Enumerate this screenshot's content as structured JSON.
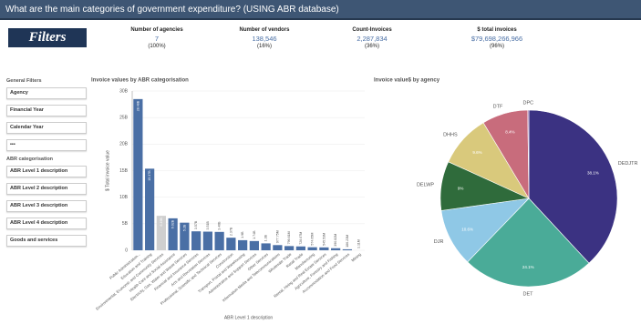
{
  "header": {
    "title": "What are the main categories of government expenditure? (USING ABR database)"
  },
  "filters_button": "Filters",
  "kpis": [
    {
      "label": "Number of agencies",
      "value": "7",
      "share": "(100%)"
    },
    {
      "label": "Number of vendors",
      "value": "138,546",
      "share": "(16%)"
    },
    {
      "label": "Count-Invoices",
      "value": "2,287,834",
      "share": "(36%)"
    },
    {
      "label": "$ total invoices",
      "value": "$79,698,266,966",
      "share": "(96%)"
    }
  ],
  "sidebar": {
    "title": "General Filters",
    "items": [
      "Agency",
      "Financial Year",
      "Calendar Year",
      "•••"
    ],
    "section": "ABR categorisation",
    "section_items": [
      "ABR Level 1 description",
      "ABR Level 2 description",
      "ABR Level 3 description",
      "ABR Level 4 description",
      "Goods and services"
    ]
  },
  "chart_data": [
    {
      "type": "bar",
      "title": "Invoice values by ABR categorisation",
      "y_label": "$ Total invoice value",
      "x_label": "ABR Level 1 description",
      "categories": [
        "Public Administration...",
        "Education and Training",
        "Environmental, Economic and Community Services",
        "Health Care and Social Assistance",
        "Electricity, Gas, Water and Waste Services",
        "Financial and Insurance Services",
        "Arts and Recreation Services",
        "Professional, Scientific and Technical Services",
        "Construction",
        "Transport, Postal and Warehousing",
        "Administrative and Support Services",
        "Other Services",
        "Information Media and Telecommunications",
        "Wholesale Trade",
        "Retail Trade",
        "Manufacturing",
        "Rental, Hiring and Real Estate Services",
        "Agriculture, Forestry and Fishing",
        "Accommodation and Food Services",
        "Mining"
      ],
      "values": [
        28.48,
        15.37,
        6.49,
        6.02,
        5.2,
        3.57,
        3.51,
        3.46,
        2.37,
        1.9,
        1.74,
        1.3,
        0.97775,
        0.79661,
        0.72607,
        0.57465,
        0.54553,
        0.39082,
        0.18623,
        0.00111
      ],
      "value_labels": [
        "28.48B",
        "15.37B",
        "6.49B",
        "6.02B",
        "5.2B",
        "3.57B",
        "3.51B",
        "3.46B",
        "2.37B",
        "1.9B",
        "1.74B",
        "1.3B",
        "977.75M",
        "796.61M",
        "726.07M",
        "574.65M",
        "545.53M",
        "390.82M",
        "186.23M",
        "1.11M"
      ],
      "colors": [
        "#4a6fa5",
        "#4a6fa5",
        "#cfcfcf",
        "#4a6fa5",
        "#4a6fa5",
        "#4a6fa5",
        "#4a6fa5",
        "#4a6fa5",
        "#4a6fa5",
        "#4a6fa5",
        "#4a6fa5",
        "#4a6fa5",
        "#4a6fa5",
        "#4a6fa5",
        "#4a6fa5",
        "#4a6fa5",
        "#4a6fa5",
        "#4a6fa5",
        "#4a6fa5",
        "#4a6fa5"
      ],
      "ylim": [
        0,
        30
      ],
      "yticks": [
        0,
        {
          "value": 5,
          "label": "5B"
        },
        {
          "value": 10,
          "label": "10B"
        },
        {
          "value": 15,
          "label": "15B"
        },
        {
          "value": 20,
          "label": "20B"
        },
        {
          "value": 25,
          "label": "25B"
        },
        {
          "value": 30,
          "label": "30B"
        }
      ],
      "grid": true
    },
    {
      "type": "pie",
      "title": "Invoice value$ by agency",
      "categories": [
        "DEDJTR",
        "DET",
        "DJR",
        "DELWP",
        "DHHS",
        "DTF",
        "DPC"
      ],
      "values": [
        38.1,
        24.1,
        10.6,
        9,
        9.6,
        8.4,
        0.2
      ],
      "value_labels": [
        "38.1%",
        "24.1%",
        "10.6%",
        "9%",
        "9.6%",
        "8.4%",
        null
      ],
      "colors": [
        "#3b3282",
        "#4aab98",
        "#8fc8e6",
        "#2f6b3b",
        "#d9c97c",
        "#c86c7c",
        "#8c5fa8"
      ]
    }
  ]
}
